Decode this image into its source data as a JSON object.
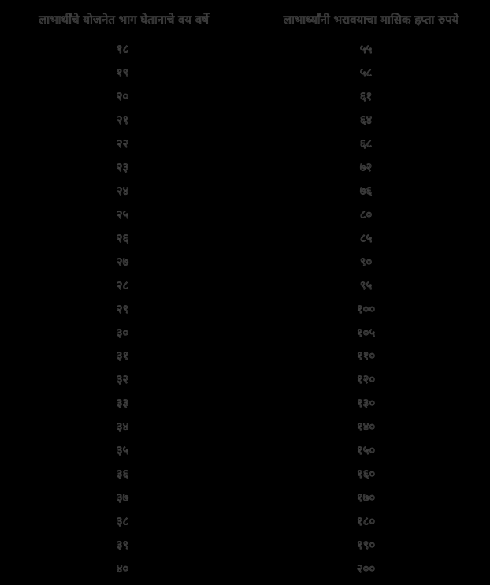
{
  "page": {
    "background_color": "#000000",
    "text_outline_color": "#3f3f3f",
    "text_fill_color": "#161616",
    "language": "Marathi (Devanagari script)"
  },
  "table": {
    "headers": [
      {
        "label": "लाभार्थींचे योजनेत भाग घेतानाचे वय वर्षे"
      },
      {
        "label": "लाभार्थ्यांनी भरावयाचा मासिक हप्ता रुपये"
      }
    ],
    "rows": [
      {
        "age": "१८",
        "installment": "५५"
      },
      {
        "age": "१९",
        "installment": "५८"
      },
      {
        "age": "२०",
        "installment": "६१"
      },
      {
        "age": "२१",
        "installment": "६४"
      },
      {
        "age": "२२",
        "installment": "६८"
      },
      {
        "age": "२३",
        "installment": "७२"
      },
      {
        "age": "२४",
        "installment": "७६"
      },
      {
        "age": "२५",
        "installment": "८०"
      },
      {
        "age": "२६",
        "installment": "८५"
      },
      {
        "age": "२७",
        "installment": "९०"
      },
      {
        "age": "२८",
        "installment": "९५"
      },
      {
        "age": "२९",
        "installment": "१००"
      },
      {
        "age": "३०",
        "installment": "१०५"
      },
      {
        "age": "३१",
        "installment": "११०"
      },
      {
        "age": "३२",
        "installment": "१२०"
      },
      {
        "age": "३३",
        "installment": "१३०"
      },
      {
        "age": "३४",
        "installment": "१४०"
      },
      {
        "age": "३५",
        "installment": "१५०"
      },
      {
        "age": "३६",
        "installment": "१६०"
      },
      {
        "age": "३७",
        "installment": "१७०"
      },
      {
        "age": "३८",
        "installment": "१८०"
      },
      {
        "age": "३९",
        "installment": "१९०"
      },
      {
        "age": "४०",
        "installment": "२००"
      }
    ]
  },
  "chart_data": {
    "type": "table",
    "columns": [
      "लाभार्थींचे योजनेत भाग घेतानाचे वय वर्षे",
      "लाभार्थ्यांनी भरावयाचा मासिक हप्ता रुपये"
    ],
    "age_years": [
      18,
      19,
      20,
      21,
      22,
      23,
      24,
      25,
      26,
      27,
      28,
      29,
      30,
      31,
      32,
      33,
      34,
      35,
      36,
      37,
      38,
      39,
      40
    ],
    "monthly_installment_rupees": [
      55,
      58,
      61,
      64,
      68,
      72,
      76,
      80,
      85,
      90,
      95,
      100,
      105,
      110,
      120,
      130,
      140,
      150,
      160,
      170,
      180,
      190,
      200
    ]
  }
}
